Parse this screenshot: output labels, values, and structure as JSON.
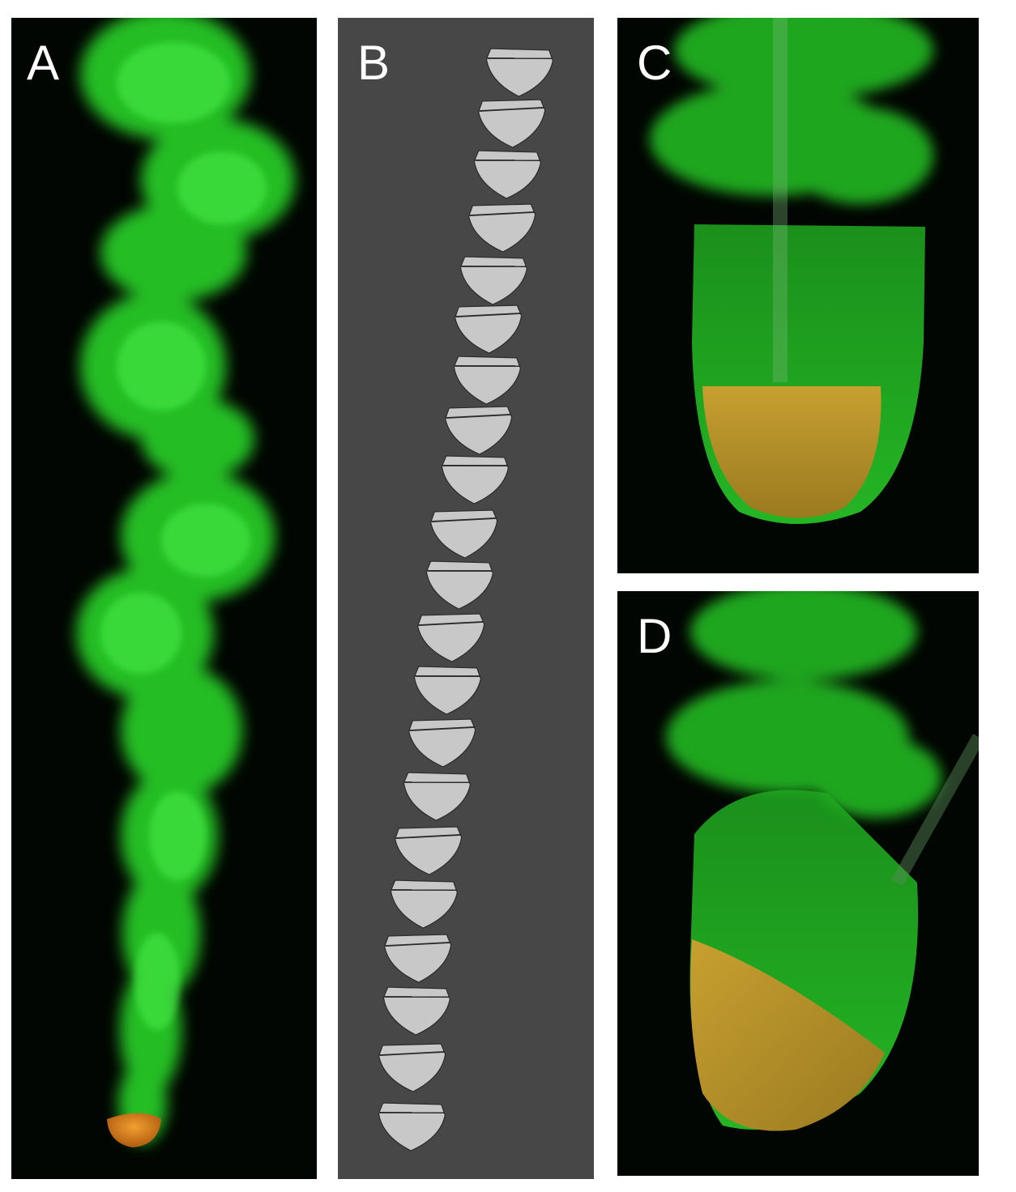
{
  "panels": {
    "a": {
      "letter": "A",
      "background": "#020602",
      "plume_color": "#2ee02e",
      "tip_color": "#e08a1e"
    },
    "b": {
      "letter": "B",
      "background": "#474747",
      "shape_fill": "#c8c8c8",
      "shape_stroke": "#2a2a2a",
      "shape_count": 21
    },
    "c": {
      "letter": "C",
      "background": "#020602",
      "body_color": "#36e636",
      "fill_color": "#c8a030"
    },
    "d": {
      "letter": "D",
      "background": "#020602",
      "body_color": "#36e636",
      "fill_color": "#c8a030"
    }
  }
}
